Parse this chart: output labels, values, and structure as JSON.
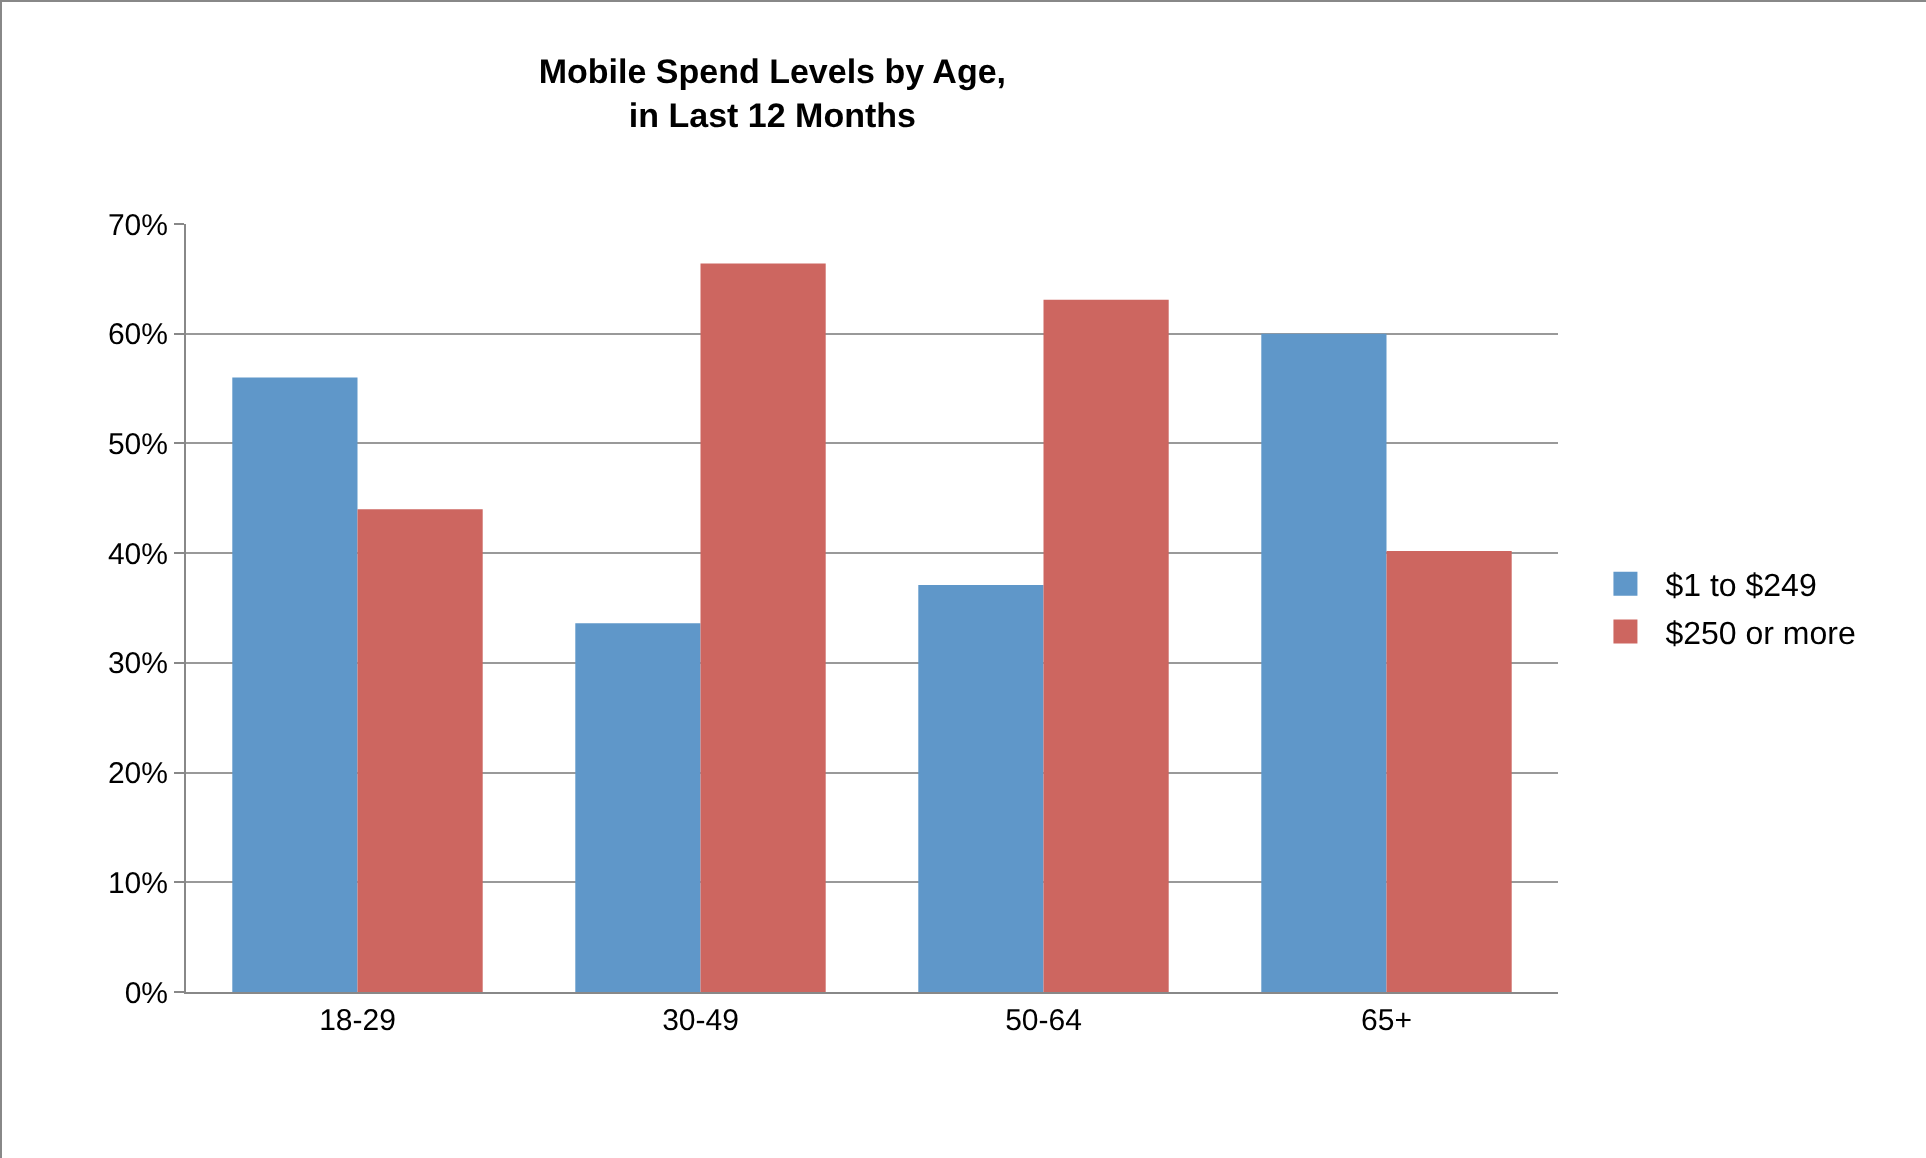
{
  "chart_data": {
    "type": "bar",
    "title": "Mobile Spend Levels by Age,\nin Last 12 Months",
    "categories": [
      "18-29",
      "30-49",
      "50-64",
      "65+"
    ],
    "series": [
      {
        "name": "$1 to $249",
        "color": "#5f97c9",
        "values": [
          56,
          33.6,
          37.1,
          60
        ]
      },
      {
        "name": "$250 or more",
        "color": "#cd6660",
        "values": [
          44,
          66.4,
          63.1,
          40.2
        ]
      }
    ],
    "ylim": [
      0,
      70
    ],
    "yticks": [
      {
        "value": 0,
        "label": "0%"
      },
      {
        "value": 10,
        "label": "10%"
      },
      {
        "value": 20,
        "label": "20%"
      },
      {
        "value": 30,
        "label": "30%"
      },
      {
        "value": 40,
        "label": "40%"
      },
      {
        "value": 50,
        "label": "50%"
      },
      {
        "value": 60,
        "label": "60%"
      },
      {
        "value": 70,
        "label": "70%"
      }
    ],
    "grid": "y",
    "legend": "right"
  }
}
